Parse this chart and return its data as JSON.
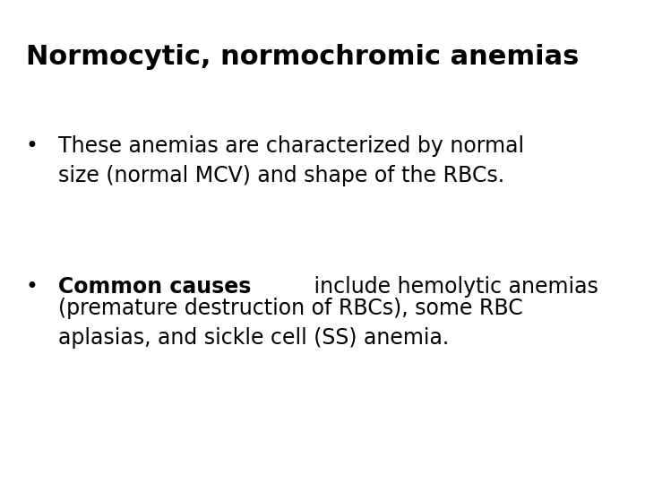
{
  "title": "Normocytic, normochromic anemias",
  "title_fontsize": 22,
  "title_fontweight": "bold",
  "background_color": "#ffffff",
  "text_color": "#000000",
  "bullet1_line1": "These anemias are characterized by normal",
  "bullet1_line2": "size (normal MCV) and shape of the RBCs.",
  "bullet2_bold": "Common causes",
  "bullet2_rest_line1": " include hemolytic anemias",
  "bullet2_line2": "(premature destruction of RBCs), some RBC",
  "bullet2_line3": "aplasias, and sickle cell (SS) anemia.",
  "bullet_fontsize": 17,
  "bullet_symbol": "•",
  "font_family": "DejaVu Sans",
  "fig_width": 7.2,
  "fig_height": 5.4,
  "dpi": 100
}
